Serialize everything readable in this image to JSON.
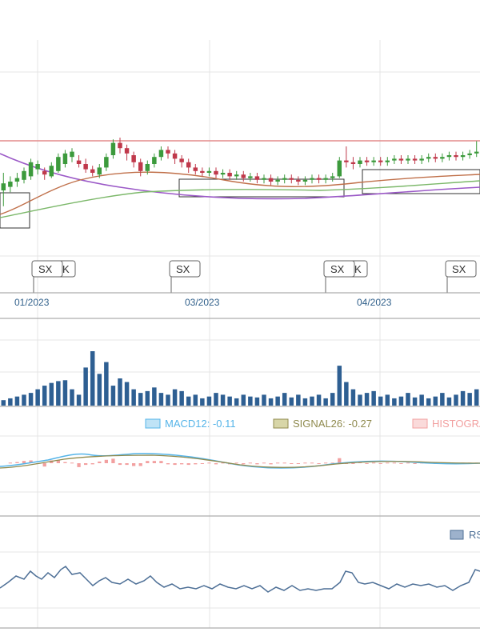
{
  "chart_data": [
    {
      "type": "candlestick",
      "panel": "price",
      "x_ticks": [
        "01/2023",
        "03/2023",
        "04/2023"
      ],
      "candles": [
        [
          40,
          48,
          22,
          60
        ],
        [
          44,
          50,
          38,
          56
        ],
        [
          50,
          54,
          44,
          60
        ],
        [
          52,
          62,
          48,
          66
        ],
        [
          56,
          72,
          52,
          76
        ],
        [
          64,
          70,
          58,
          74
        ],
        [
          62,
          58,
          52,
          66
        ],
        [
          56,
          68,
          54,
          72
        ],
        [
          62,
          78,
          60,
          82
        ],
        [
          70,
          82,
          66,
          86
        ],
        [
          78,
          84,
          72,
          88
        ],
        [
          74,
          70,
          66,
          80
        ],
        [
          70,
          64,
          60,
          76
        ],
        [
          64,
          60,
          56,
          68
        ],
        [
          58,
          66,
          54,
          70
        ],
        [
          66,
          78,
          62,
          82
        ],
        [
          80,
          94,
          76,
          98
        ],
        [
          94,
          88,
          82,
          100
        ],
        [
          88,
          82,
          74,
          92
        ],
        [
          80,
          72,
          66,
          84
        ],
        [
          72,
          62,
          56,
          76
        ],
        [
          62,
          70,
          58,
          74
        ],
        [
          70,
          78,
          66,
          82
        ],
        [
          78,
          86,
          74,
          90
        ],
        [
          86,
          82,
          76,
          90
        ],
        [
          82,
          76,
          70,
          86
        ],
        [
          76,
          72,
          66,
          80
        ],
        [
          72,
          66,
          60,
          76
        ],
        [
          66,
          62,
          58,
          70
        ],
        [
          62,
          60,
          56,
          66
        ],
        [
          60,
          62,
          56,
          66
        ],
        [
          62,
          58,
          54,
          66
        ],
        [
          58,
          60,
          54,
          64
        ],
        [
          60,
          56,
          52,
          64
        ],
        [
          56,
          58,
          52,
          62
        ],
        [
          58,
          54,
          50,
          62
        ],
        [
          54,
          56,
          50,
          60
        ],
        [
          56,
          52,
          48,
          60
        ],
        [
          52,
          54,
          48,
          58
        ],
        [
          54,
          50,
          46,
          58
        ],
        [
          50,
          52,
          46,
          56
        ],
        [
          52,
          54,
          48,
          58
        ],
        [
          54,
          52,
          48,
          58
        ],
        [
          52,
          50,
          46,
          56
        ],
        [
          50,
          52,
          46,
          56
        ],
        [
          52,
          54,
          48,
          58
        ],
        [
          54,
          52,
          48,
          58
        ],
        [
          52,
          54,
          48,
          58
        ],
        [
          54,
          56,
          50,
          60
        ],
        [
          56,
          74,
          54,
          78
        ],
        [
          74,
          72,
          66,
          90
        ],
        [
          72,
          70,
          64,
          78
        ],
        [
          70,
          74,
          66,
          78
        ],
        [
          74,
          72,
          68,
          78
        ],
        [
          72,
          74,
          68,
          78
        ],
        [
          74,
          72,
          68,
          78
        ],
        [
          72,
          74,
          68,
          78
        ],
        [
          74,
          76,
          70,
          80
        ],
        [
          76,
          74,
          70,
          80
        ],
        [
          74,
          76,
          70,
          80
        ],
        [
          76,
          74,
          70,
          80
        ],
        [
          74,
          76,
          70,
          80
        ],
        [
          76,
          78,
          72,
          82
        ],
        [
          78,
          76,
          72,
          82
        ],
        [
          76,
          78,
          72,
          82
        ],
        [
          78,
          80,
          74,
          84
        ],
        [
          80,
          78,
          74,
          84
        ],
        [
          78,
          80,
          74,
          84
        ],
        [
          80,
          82,
          76,
          86
        ],
        [
          82,
          84,
          78,
          96
        ]
      ],
      "volume": [
        6,
        8,
        10,
        12,
        14,
        18,
        22,
        25,
        27,
        28,
        18,
        12,
        42,
        60,
        35,
        48,
        22,
        30,
        26,
        18,
        14,
        16,
        20,
        14,
        12,
        18,
        16,
        10,
        12,
        8,
        10,
        14,
        12,
        10,
        8,
        12,
        10,
        9,
        12,
        8,
        10,
        14,
        9,
        12,
        8,
        10,
        12,
        8,
        14,
        44,
        26,
        18,
        12,
        14,
        16,
        10,
        12,
        8,
        10,
        14,
        9,
        12,
        8,
        10,
        14,
        9,
        12,
        16,
        14,
        18
      ],
      "macd": {
        "legend": [
          {
            "label": "MACD12: -0.11",
            "color": "#55b4e8",
            "swatch": "#bfe3f6"
          },
          {
            "label": "SIGNAL26: -0.27",
            "color": "#8f8a4e",
            "swatch": "#d8d6a8"
          },
          {
            "label": "HISTOGRAM",
            "color": "#f2a0a0",
            "swatch": "#fadada"
          }
        ]
      },
      "rsi": {
        "legend": {
          "label": "RSI",
          "color": "#4d6f96",
          "swatch": "#9db2cc"
        }
      }
    }
  ],
  "markers": [
    {
      "label": "SX",
      "suffix": "K"
    },
    {
      "label": "SX",
      "suffix": ""
    },
    {
      "label": "SX",
      "suffix": "K"
    },
    {
      "label": "SX",
      "suffix": ""
    }
  ]
}
